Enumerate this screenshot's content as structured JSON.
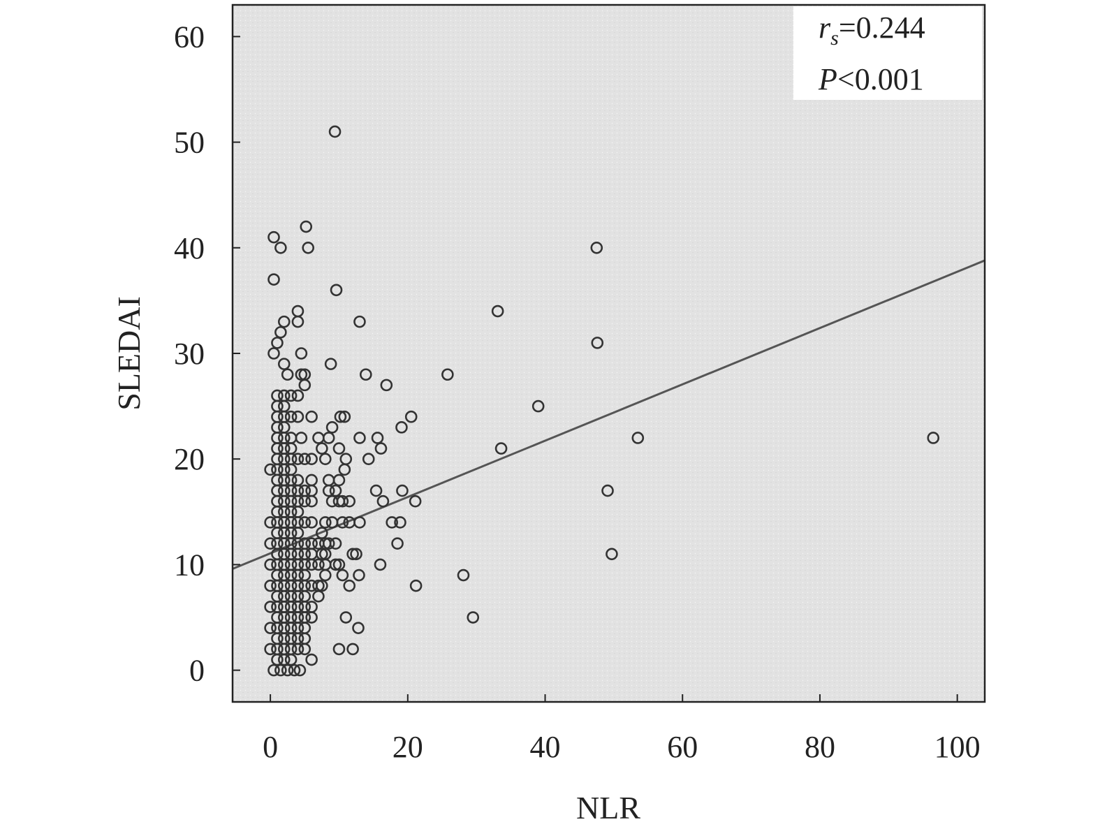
{
  "chart_data": {
    "type": "scatter",
    "xlabel": "NLR",
    "ylabel": "SLEDAI",
    "xlim": [
      -5.5,
      104
    ],
    "ylim": [
      -3,
      63
    ],
    "x_ticks": [
      0,
      20,
      40,
      60,
      80,
      100
    ],
    "y_ticks": [
      0,
      10,
      20,
      30,
      40,
      50,
      60
    ],
    "grid": false,
    "legend": "none",
    "annotation": {
      "r_symbol": "r",
      "r_subscript": "s",
      "r_value": "=0.244",
      "p_symbol": "P",
      "p_value": "<0.001",
      "placement": "top-right"
    },
    "fit_line": {
      "x": [
        -5.5,
        104
      ],
      "y": [
        9.6,
        38.8
      ]
    },
    "colors": {
      "plot_bg": "#e4e4e4",
      "marker": "#333333",
      "line": "#555555",
      "axis": "#222222"
    },
    "series": [
      {
        "points": [
          [
            0.5,
            41
          ],
          [
            1.5,
            40
          ],
          [
            0.5,
            37
          ],
          [
            5.2,
            42
          ],
          [
            5.5,
            40
          ],
          [
            9.4,
            51
          ],
          [
            9.6,
            36
          ],
          [
            4,
            34
          ],
          [
            4,
            33
          ],
          [
            2,
            33
          ],
          [
            1.5,
            32
          ],
          [
            1,
            31
          ],
          [
            0.5,
            30
          ],
          [
            2,
            29
          ],
          [
            4.5,
            30
          ],
          [
            2.5,
            28
          ],
          [
            4.5,
            28
          ],
          [
            5,
            28
          ],
          [
            5,
            27
          ],
          [
            1,
            26
          ],
          [
            2,
            26
          ],
          [
            3,
            26
          ],
          [
            1,
            25
          ],
          [
            2,
            25
          ],
          [
            4,
            26
          ],
          [
            1,
            24
          ],
          [
            2,
            24
          ],
          [
            3,
            24
          ],
          [
            4,
            24
          ],
          [
            6,
            24
          ],
          [
            1,
            23
          ],
          [
            2,
            23
          ],
          [
            1,
            22
          ],
          [
            2,
            22
          ],
          [
            3,
            22
          ],
          [
            4.5,
            22
          ],
          [
            1,
            21
          ],
          [
            2,
            21
          ],
          [
            3,
            21
          ],
          [
            1,
            20
          ],
          [
            2,
            20
          ],
          [
            3,
            20
          ],
          [
            4,
            20
          ],
          [
            5,
            20
          ],
          [
            6,
            20
          ],
          [
            0,
            19
          ],
          [
            1,
            19
          ],
          [
            2,
            19
          ],
          [
            3,
            19
          ],
          [
            1,
            18
          ],
          [
            2,
            18
          ],
          [
            3,
            18
          ],
          [
            4,
            18
          ],
          [
            6,
            18
          ],
          [
            1,
            17
          ],
          [
            2,
            17
          ],
          [
            3,
            17
          ],
          [
            4,
            17
          ],
          [
            5,
            17
          ],
          [
            6,
            17
          ],
          [
            1,
            16
          ],
          [
            2,
            16
          ],
          [
            3,
            16
          ],
          [
            4,
            16
          ],
          [
            5,
            16
          ],
          [
            6,
            16
          ],
          [
            1,
            15
          ],
          [
            2,
            15
          ],
          [
            3,
            15
          ],
          [
            4,
            15
          ],
          [
            0,
            14
          ],
          [
            1,
            14
          ],
          [
            2,
            14
          ],
          [
            3,
            14
          ],
          [
            4,
            14
          ],
          [
            5,
            14
          ],
          [
            6,
            14
          ],
          [
            1,
            13
          ],
          [
            2,
            13
          ],
          [
            3,
            13
          ],
          [
            4,
            13
          ],
          [
            0,
            12
          ],
          [
            1,
            12
          ],
          [
            2,
            12
          ],
          [
            3,
            12
          ],
          [
            4,
            12
          ],
          [
            5,
            12
          ],
          [
            6,
            12
          ],
          [
            7,
            12
          ],
          [
            1,
            11
          ],
          [
            2,
            11
          ],
          [
            3,
            11
          ],
          [
            4,
            11
          ],
          [
            5,
            11
          ],
          [
            6,
            11
          ],
          [
            0,
            10
          ],
          [
            1,
            10
          ],
          [
            2,
            10
          ],
          [
            3,
            10
          ],
          [
            4,
            10
          ],
          [
            5,
            10
          ],
          [
            6,
            10
          ],
          [
            1,
            9
          ],
          [
            2,
            9
          ],
          [
            3,
            9
          ],
          [
            4,
            9
          ],
          [
            5,
            9
          ],
          [
            0,
            8
          ],
          [
            1,
            8
          ],
          [
            2,
            8
          ],
          [
            3,
            8
          ],
          [
            4,
            8
          ],
          [
            5,
            8
          ],
          [
            6,
            8
          ],
          [
            1,
            7
          ],
          [
            2,
            7
          ],
          [
            3,
            7
          ],
          [
            4,
            7
          ],
          [
            5,
            7
          ],
          [
            0,
            6
          ],
          [
            1,
            6
          ],
          [
            2,
            6
          ],
          [
            3,
            6
          ],
          [
            4,
            6
          ],
          [
            5,
            6
          ],
          [
            6,
            6
          ],
          [
            1,
            5
          ],
          [
            2,
            5
          ],
          [
            3,
            5
          ],
          [
            4,
            5
          ],
          [
            5,
            5
          ],
          [
            6,
            5
          ],
          [
            0,
            4
          ],
          [
            1,
            4
          ],
          [
            2,
            4
          ],
          [
            3,
            4
          ],
          [
            4,
            4
          ],
          [
            5,
            4
          ],
          [
            1,
            3
          ],
          [
            2,
            3
          ],
          [
            3,
            3
          ],
          [
            4,
            3
          ],
          [
            5,
            3
          ],
          [
            0,
            2
          ],
          [
            1,
            2
          ],
          [
            2,
            2
          ],
          [
            3,
            2
          ],
          [
            4,
            2
          ],
          [
            5,
            2
          ],
          [
            1,
            1
          ],
          [
            2,
            1
          ],
          [
            3,
            1
          ],
          [
            6,
            1
          ],
          [
            0.5,
            0
          ],
          [
            1.5,
            0
          ],
          [
            2.5,
            0
          ],
          [
            3.5,
            0
          ],
          [
            4.3,
            0
          ],
          [
            7,
            22
          ],
          [
            7.5,
            21
          ],
          [
            8,
            20
          ],
          [
            8.5,
            22
          ],
          [
            9,
            23
          ],
          [
            8.5,
            18
          ],
          [
            8.5,
            17
          ],
          [
            9.5,
            17
          ],
          [
            9,
            16
          ],
          [
            10,
            16
          ],
          [
            10.5,
            16
          ],
          [
            8,
            14
          ],
          [
            9,
            14
          ],
          [
            10.5,
            14
          ],
          [
            7.5,
            13
          ],
          [
            8,
            12
          ],
          [
            8.5,
            12
          ],
          [
            9.5,
            12
          ],
          [
            7.5,
            11
          ],
          [
            8,
            11
          ],
          [
            7,
            10
          ],
          [
            8,
            10
          ],
          [
            9.5,
            10
          ],
          [
            10,
            10
          ],
          [
            10.5,
            9
          ],
          [
            8,
            9
          ],
          [
            7,
            8
          ],
          [
            7.5,
            8
          ],
          [
            7,
            7
          ],
          [
            10.2,
            24
          ],
          [
            10.8,
            24
          ],
          [
            8.8,
            29
          ],
          [
            10,
            21
          ],
          [
            11,
            20
          ],
          [
            10.8,
            19
          ],
          [
            10,
            18
          ],
          [
            11.5,
            16
          ],
          [
            11.5,
            14
          ],
          [
            12,
            11
          ],
          [
            12.5,
            11
          ],
          [
            11.5,
            8
          ],
          [
            12.9,
            9
          ],
          [
            11,
            5
          ],
          [
            12.8,
            4
          ],
          [
            10,
            2
          ],
          [
            12,
            2
          ],
          [
            13,
            33
          ],
          [
            13,
            22
          ],
          [
            13.9,
            28
          ],
          [
            14.3,
            20
          ],
          [
            13,
            14
          ],
          [
            15.6,
            22
          ],
          [
            16.1,
            21
          ],
          [
            15.4,
            17
          ],
          [
            16.4,
            16
          ],
          [
            16.9,
            27
          ],
          [
            16,
            10
          ],
          [
            19.1,
            23
          ],
          [
            20.5,
            24
          ],
          [
            19.2,
            17
          ],
          [
            21.1,
            16
          ],
          [
            17.7,
            14
          ],
          [
            18.9,
            14
          ],
          [
            18.5,
            12
          ],
          [
            21.2,
            8
          ],
          [
            25.8,
            28
          ],
          [
            28.1,
            9
          ],
          [
            29.5,
            5
          ],
          [
            33.1,
            34
          ],
          [
            33.6,
            21
          ],
          [
            39,
            25
          ],
          [
            47.5,
            40
          ],
          [
            47.6,
            31
          ],
          [
            53.5,
            22
          ],
          [
            49.1,
            17
          ],
          [
            49.7,
            11
          ],
          [
            96.5,
            22
          ]
        ]
      }
    ]
  }
}
